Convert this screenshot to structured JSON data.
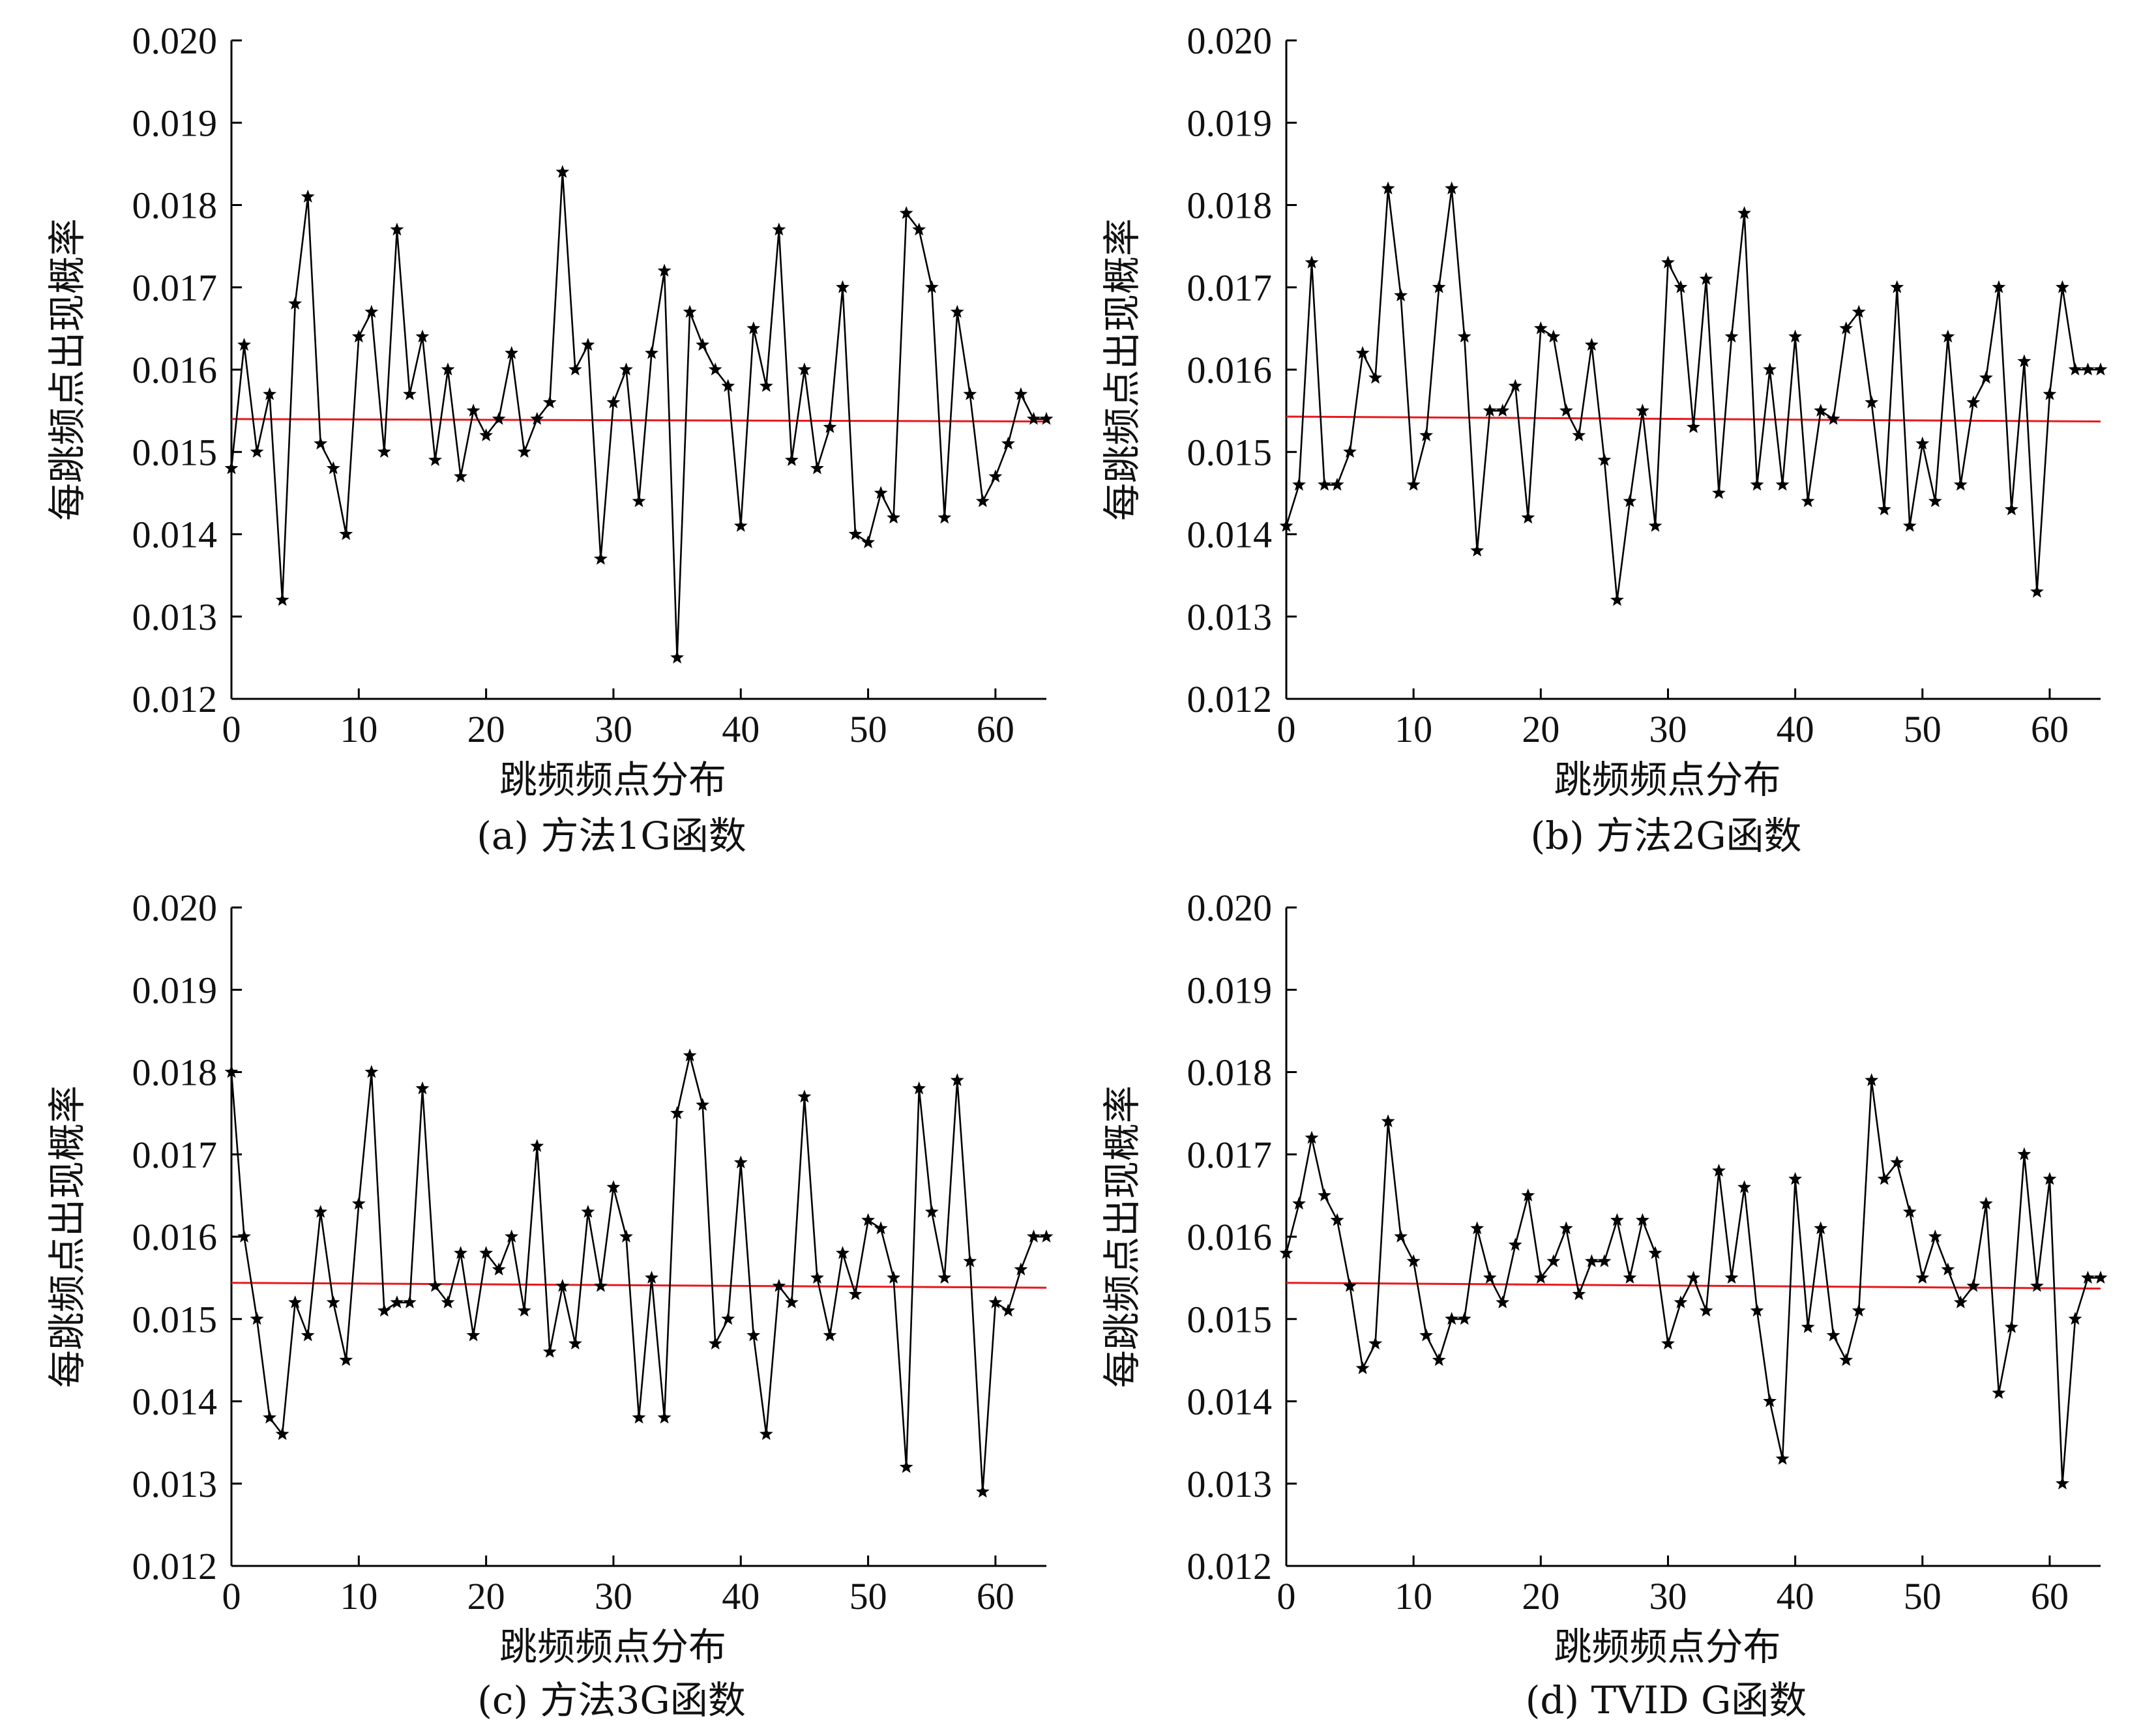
{
  "colors": {
    "series": "#000000",
    "mean_line": "#e8191c",
    "axis": "#000000"
  },
  "chart_data": [
    {
      "type": "line",
      "caption": "(a) 方法1G函数",
      "xlabel": "跳频频点分布",
      "ylabel": "每跳频点出现概率",
      "xlim": [
        0,
        64
      ],
      "ylim": [
        0.012,
        0.02
      ],
      "xticks": [
        0,
        10,
        20,
        30,
        40,
        50,
        60
      ],
      "yticks": [
        "0.012",
        "0.013",
        "0.014",
        "0.015",
        "0.016",
        "0.017",
        "0.018",
        "0.019",
        "0.020"
      ],
      "marker": "star",
      "series": [
        {
          "name": "probability",
          "x": [
            0,
            1,
            2,
            3,
            4,
            5,
            6,
            7,
            8,
            9,
            10,
            11,
            12,
            13,
            14,
            15,
            16,
            17,
            18,
            19,
            20,
            21,
            22,
            23,
            24,
            25,
            26,
            27,
            28,
            29,
            30,
            31,
            32,
            33,
            34,
            35,
            36,
            37,
            38,
            39,
            40,
            41,
            42,
            43,
            44,
            45,
            46,
            47,
            48,
            49,
            50,
            51,
            52,
            53,
            54,
            55,
            56,
            57,
            58,
            59,
            60,
            61,
            62,
            63,
            64
          ],
          "values": [
            0.0148,
            0.0163,
            0.015,
            0.0157,
            0.0132,
            0.0168,
            0.0181,
            0.0151,
            0.0148,
            0.014,
            0.0164,
            0.0167,
            0.015,
            0.0177,
            0.0157,
            0.0164,
            0.0149,
            0.016,
            0.0147,
            0.0155,
            0.0152,
            0.0154,
            0.0162,
            0.015,
            0.0154,
            0.0156,
            0.0184,
            0.016,
            0.0163,
            0.0137,
            0.0156,
            0.016,
            0.0144,
            0.0162,
            0.0172,
            0.0125,
            0.0167,
            0.0163,
            0.016,
            0.0158,
            0.0141,
            0.0165,
            0.0158,
            0.0177,
            0.0149,
            0.016,
            0.0148,
            0.0153,
            0.017,
            0.014,
            0.0139,
            0.0145,
            0.0142,
            0.0179,
            0.0177,
            0.017,
            0.0142,
            0.0167,
            0.0157,
            0.0144,
            0.0147,
            0.0151,
            0.0157,
            0.0154,
            0.0154
          ]
        }
      ],
      "mean_line": {
        "start": 0.0154,
        "end": 0.01537
      }
    },
    {
      "type": "line",
      "caption": "(b) 方法2G函数",
      "xlabel": "跳频频点分布",
      "ylabel": "每跳频点出现概率",
      "xlim": [
        0,
        64
      ],
      "ylim": [
        0.012,
        0.02
      ],
      "xticks": [
        0,
        10,
        20,
        30,
        40,
        50,
        60
      ],
      "yticks": [
        "0.012",
        "0.013",
        "0.014",
        "0.015",
        "0.016",
        "0.017",
        "0.018",
        "0.019",
        "0.020"
      ],
      "marker": "star",
      "series": [
        {
          "name": "probability",
          "x": [
            0,
            1,
            2,
            3,
            4,
            5,
            6,
            7,
            8,
            9,
            10,
            11,
            12,
            13,
            14,
            15,
            16,
            17,
            18,
            19,
            20,
            21,
            22,
            23,
            24,
            25,
            26,
            27,
            28,
            29,
            30,
            31,
            32,
            33,
            34,
            35,
            36,
            37,
            38,
            39,
            40,
            41,
            42,
            43,
            44,
            45,
            46,
            47,
            48,
            49,
            50,
            51,
            52,
            53,
            54,
            55,
            56,
            57,
            58,
            59,
            60,
            61,
            62,
            63,
            64
          ],
          "values": [
            0.0141,
            0.0146,
            0.0173,
            0.0146,
            0.0146,
            0.015,
            0.0162,
            0.0159,
            0.0182,
            0.0169,
            0.0146,
            0.0152,
            0.017,
            0.0182,
            0.0164,
            0.0138,
            0.0155,
            0.0155,
            0.0158,
            0.0142,
            0.0165,
            0.0164,
            0.0155,
            0.0152,
            0.0163,
            0.0149,
            0.0132,
            0.0144,
            0.0155,
            0.0141,
            0.0173,
            0.017,
            0.0153,
            0.0171,
            0.0145,
            0.0164,
            0.0179,
            0.0146,
            0.016,
            0.0146,
            0.0164,
            0.0144,
            0.0155,
            0.0154,
            0.0165,
            0.0167,
            0.0156,
            0.0143,
            0.017,
            0.0141,
            0.0151,
            0.0144,
            0.0164,
            0.0146,
            0.0156,
            0.0159,
            0.017,
            0.0143,
            0.0161,
            0.0133,
            0.0157,
            0.017,
            0.016,
            0.016,
            0.016
          ]
        }
      ],
      "mean_line": {
        "start": 0.01543,
        "end": 0.01537
      }
    },
    {
      "type": "line",
      "caption": "(c) 方法3G函数",
      "xlabel": "跳频频点分布",
      "ylabel": "每跳频点出现概率",
      "xlim": [
        0,
        64
      ],
      "ylim": [
        0.012,
        0.02
      ],
      "xticks": [
        0,
        10,
        20,
        30,
        40,
        50,
        60
      ],
      "yticks": [
        "0.012",
        "0.013",
        "0.014",
        "0.015",
        "0.016",
        "0.017",
        "0.018",
        "0.019",
        "0.020"
      ],
      "marker": "star",
      "series": [
        {
          "name": "probability",
          "x": [
            0,
            1,
            2,
            3,
            4,
            5,
            6,
            7,
            8,
            9,
            10,
            11,
            12,
            13,
            14,
            15,
            16,
            17,
            18,
            19,
            20,
            21,
            22,
            23,
            24,
            25,
            26,
            27,
            28,
            29,
            30,
            31,
            32,
            33,
            34,
            35,
            36,
            37,
            38,
            39,
            40,
            41,
            42,
            43,
            44,
            45,
            46,
            47,
            48,
            49,
            50,
            51,
            52,
            53,
            54,
            55,
            56,
            57,
            58,
            59,
            60,
            61,
            62,
            63,
            64
          ],
          "values": [
            0.018,
            0.016,
            0.015,
            0.0138,
            0.0136,
            0.0152,
            0.0148,
            0.0163,
            0.0152,
            0.0145,
            0.0164,
            0.018,
            0.0151,
            0.0152,
            0.0152,
            0.0178,
            0.0154,
            0.0152,
            0.0158,
            0.0148,
            0.0158,
            0.0156,
            0.016,
            0.0151,
            0.0171,
            0.0146,
            0.0154,
            0.0147,
            0.0163,
            0.0154,
            0.0166,
            0.016,
            0.0138,
            0.0155,
            0.0138,
            0.0175,
            0.0182,
            0.0176,
            0.0147,
            0.015,
            0.0169,
            0.0148,
            0.0136,
            0.0154,
            0.0152,
            0.0177,
            0.0155,
            0.0148,
            0.0158,
            0.0153,
            0.0162,
            0.0161,
            0.0155,
            0.0132,
            0.0178,
            0.0163,
            0.0155,
            0.0179,
            0.0157,
            0.0129,
            0.0152,
            0.0151,
            0.0156,
            0.016,
            0.016
          ]
        }
      ],
      "mean_line": {
        "start": 0.01544,
        "end": 0.01538
      }
    },
    {
      "type": "line",
      "caption": "(d) TVID G函数",
      "xlabel": "跳频频点分布",
      "ylabel": "每跳频点出现概率",
      "xlim": [
        0,
        64
      ],
      "ylim": [
        0.012,
        0.02
      ],
      "xticks": [
        0,
        10,
        20,
        30,
        40,
        50,
        60
      ],
      "yticks": [
        "0.012",
        "0.013",
        "0.014",
        "0.015",
        "0.016",
        "0.017",
        "0.018",
        "0.019",
        "0.020"
      ],
      "marker": "star",
      "series": [
        {
          "name": "probability",
          "x": [
            0,
            1,
            2,
            3,
            4,
            5,
            6,
            7,
            8,
            9,
            10,
            11,
            12,
            13,
            14,
            15,
            16,
            17,
            18,
            19,
            20,
            21,
            22,
            23,
            24,
            25,
            26,
            27,
            28,
            29,
            30,
            31,
            32,
            33,
            34,
            35,
            36,
            37,
            38,
            39,
            40,
            41,
            42,
            43,
            44,
            45,
            46,
            47,
            48,
            49,
            50,
            51,
            52,
            53,
            54,
            55,
            56,
            57,
            58,
            59,
            60,
            61,
            62,
            63,
            64
          ],
          "values": [
            0.0158,
            0.0164,
            0.0172,
            0.0165,
            0.0162,
            0.0154,
            0.0144,
            0.0147,
            0.0174,
            0.016,
            0.0157,
            0.0148,
            0.0145,
            0.015,
            0.015,
            0.0161,
            0.0155,
            0.0152,
            0.0159,
            0.0165,
            0.0155,
            0.0157,
            0.0161,
            0.0153,
            0.0157,
            0.0157,
            0.0162,
            0.0155,
            0.0162,
            0.0158,
            0.0147,
            0.0152,
            0.0155,
            0.0151,
            0.0168,
            0.0155,
            0.0166,
            0.0151,
            0.014,
            0.0133,
            0.0167,
            0.0149,
            0.0161,
            0.0148,
            0.0145,
            0.0151,
            0.0179,
            0.0167,
            0.0169,
            0.0163,
            0.0155,
            0.016,
            0.0156,
            0.0152,
            0.0154,
            0.0164,
            0.0141,
            0.0149,
            0.017,
            0.0154,
            0.0167,
            0.013,
            0.015,
            0.0155,
            0.0155
          ]
        }
      ],
      "mean_line": {
        "start": 0.01544,
        "end": 0.01537
      }
    }
  ]
}
